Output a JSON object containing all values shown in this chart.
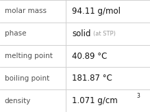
{
  "rows": [
    {
      "label": "molar mass",
      "value": "94.11 g/mol",
      "has_suffix": false,
      "has_super": false
    },
    {
      "label": "phase",
      "value": "solid",
      "has_suffix": true,
      "suffix": "(at STP)",
      "has_super": false
    },
    {
      "label": "melting point",
      "value": "40.89 °C",
      "has_suffix": false,
      "has_super": false
    },
    {
      "label": "boiling point",
      "value": "181.87 °C",
      "has_suffix": false,
      "has_super": false
    },
    {
      "label": "density",
      "value": "1.071 g/cm",
      "has_suffix": false,
      "has_super": true,
      "super": "3"
    }
  ],
  "bg_color": "#ffffff",
  "line_color": "#d0d0d0",
  "label_color": "#505050",
  "value_color": "#111111",
  "suffix_color": "#999999",
  "label_fontsize": 7.5,
  "value_fontsize": 8.5,
  "suffix_fontsize": 6.0,
  "super_fontsize": 5.5,
  "col_split": 0.44,
  "figwidth": 2.19,
  "figheight": 1.64,
  "dpi": 100
}
